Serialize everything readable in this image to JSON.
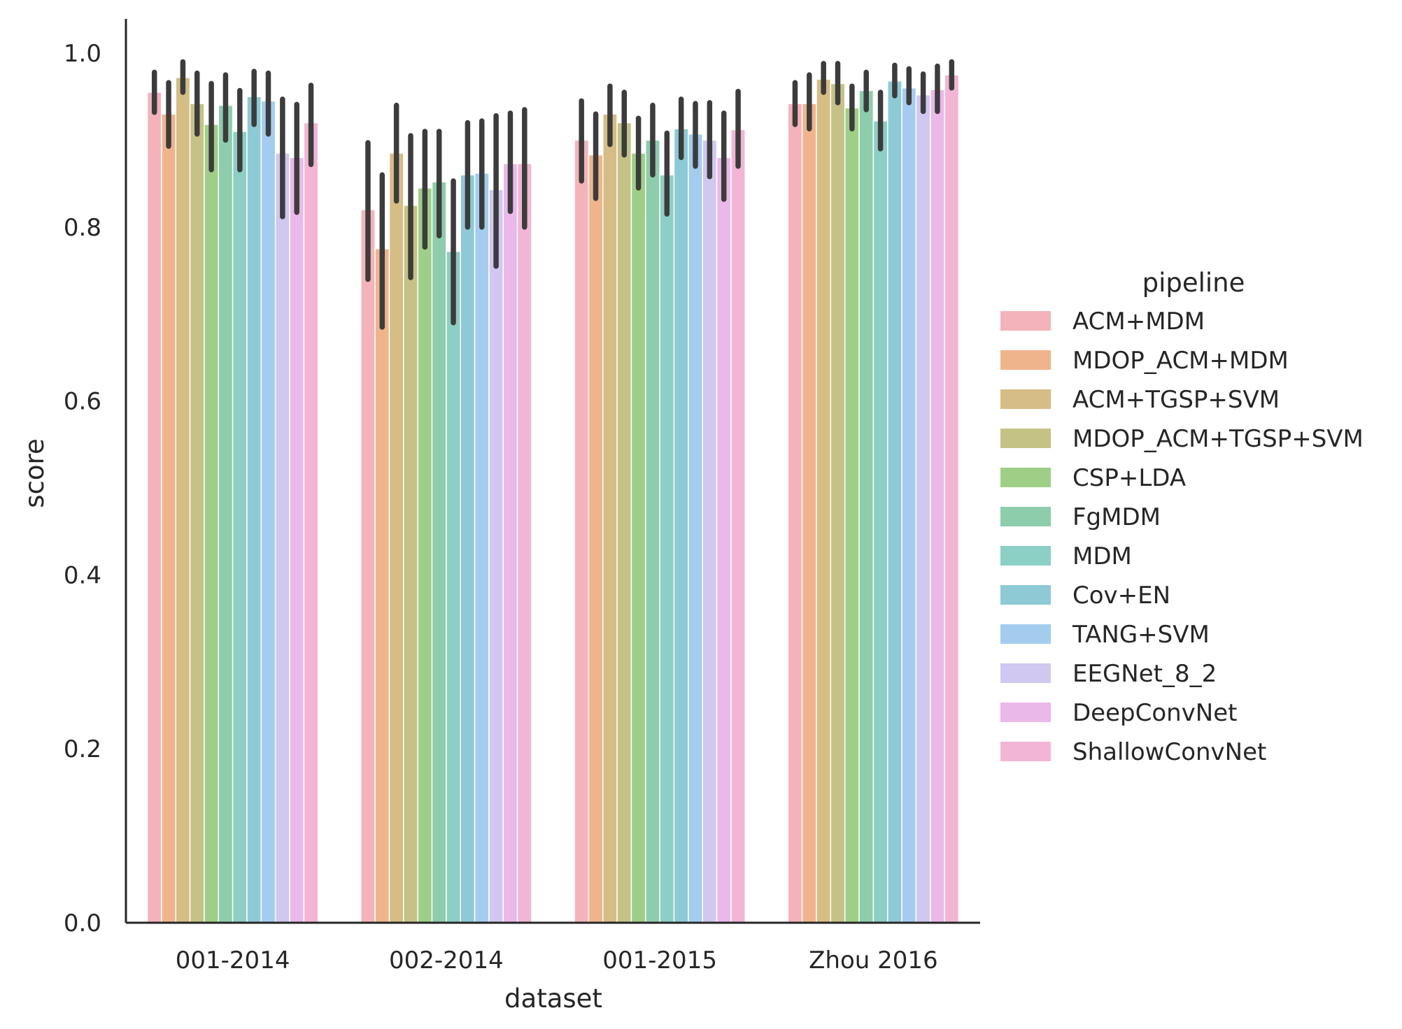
{
  "chart_data": {
    "type": "bar",
    "xlabel": "dataset",
    "ylabel": "score",
    "ylim": [
      0,
      1.04
    ],
    "yticks": [
      "0.0",
      "0.2",
      "0.4",
      "0.6",
      "0.8",
      "1.0"
    ],
    "ytick_values": [
      0,
      0.2,
      0.4,
      0.6,
      0.8,
      1.0
    ],
    "grid": false,
    "legend": {
      "title": "pipeline",
      "placement": "right"
    },
    "categories": [
      "001-2014",
      "002-2014",
      "001-2015",
      "Zhou 2016"
    ],
    "series": [
      {
        "name": "ACM+MDM",
        "color": "#f4b3ba",
        "values": [
          0.955,
          0.82,
          0.9,
          0.942
        ],
        "err_low": [
          0.932,
          0.74,
          0.853,
          0.918
        ],
        "err_high": [
          0.978,
          0.897,
          0.945,
          0.966
        ]
      },
      {
        "name": "MDOP_ACM+MDM",
        "color": "#f0b48c",
        "values": [
          0.93,
          0.775,
          0.883,
          0.942
        ],
        "err_low": [
          0.893,
          0.685,
          0.833,
          0.913
        ],
        "err_high": [
          0.966,
          0.86,
          0.93,
          0.975
        ]
      },
      {
        "name": "ACM+TGSP+SVM",
        "color": "#d6bd85",
        "values": [
          0.972,
          0.885,
          0.93,
          0.97
        ],
        "err_low": [
          0.955,
          0.83,
          0.895,
          0.955
        ],
        "err_high": [
          0.99,
          0.94,
          0.962,
          0.988
        ]
      },
      {
        "name": "MDOP_ACM+TGSP+SVM",
        "color": "#c5c286",
        "values": [
          0.942,
          0.825,
          0.92,
          0.965
        ],
        "err_low": [
          0.907,
          0.742,
          0.883,
          0.943
        ],
        "err_high": [
          0.977,
          0.905,
          0.955,
          0.988
        ]
      },
      {
        "name": "CSP+LDA",
        "color": "#9fcf87",
        "values": [
          0.918,
          0.845,
          0.885,
          0.937
        ],
        "err_low": [
          0.866,
          0.777,
          0.845,
          0.913
        ],
        "err_high": [
          0.965,
          0.91,
          0.925,
          0.962
        ]
      },
      {
        "name": "FgMDM",
        "color": "#8dcdac",
        "values": [
          0.94,
          0.852,
          0.9,
          0.957
        ],
        "err_low": [
          0.9,
          0.79,
          0.86,
          0.935
        ],
        "err_high": [
          0.975,
          0.91,
          0.94,
          0.978
        ]
      },
      {
        "name": "MDM",
        "color": "#8ccfc4",
        "values": [
          0.91,
          0.772,
          0.86,
          0.922
        ],
        "err_low": [
          0.866,
          0.69,
          0.815,
          0.89
        ],
        "err_high": [
          0.957,
          0.853,
          0.908,
          0.955
        ]
      },
      {
        "name": "Cov+EN",
        "color": "#8dcad6",
        "values": [
          0.95,
          0.86,
          0.913,
          0.968
        ],
        "err_low": [
          0.918,
          0.8,
          0.88,
          0.951
        ],
        "err_high": [
          0.979,
          0.92,
          0.947,
          0.986
        ]
      },
      {
        "name": "TANG+SVM",
        "color": "#a4ccef",
        "values": [
          0.945,
          0.862,
          0.907,
          0.96
        ],
        "err_low": [
          0.907,
          0.8,
          0.87,
          0.943
        ],
        "err_high": [
          0.977,
          0.922,
          0.942,
          0.982
        ]
      },
      {
        "name": "EEGNet_8_2",
        "color": "#d0c8f0",
        "values": [
          0.885,
          0.843,
          0.9,
          0.952
        ],
        "err_low": [
          0.812,
          0.755,
          0.858,
          0.933
        ],
        "err_high": [
          0.947,
          0.928,
          0.943,
          0.976
        ]
      },
      {
        "name": "DeepConvNet",
        "color": "#ebb8ea",
        "values": [
          0.88,
          0.873,
          0.88,
          0.958
        ],
        "err_low": [
          0.817,
          0.818,
          0.832,
          0.933
        ],
        "err_high": [
          0.941,
          0.931,
          0.931,
          0.985
        ]
      },
      {
        "name": "ShallowConvNet",
        "color": "#f2b5d5",
        "values": [
          0.92,
          0.873,
          0.912,
          0.975
        ],
        "err_low": [
          0.872,
          0.8,
          0.87,
          0.96
        ],
        "err_high": [
          0.963,
          0.935,
          0.956,
          0.99
        ]
      }
    ]
  }
}
